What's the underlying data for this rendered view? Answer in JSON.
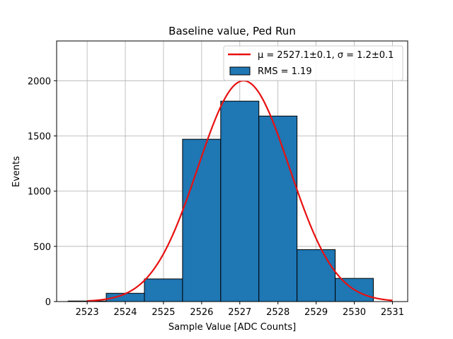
{
  "chart_data": {
    "type": "bar",
    "title": "Baseline value, Ped Run",
    "xlabel": "Sample Value [ADC Counts]",
    "ylabel": "Events",
    "xlim": [
      2522.2,
      2531.4
    ],
    "ylim": [
      0,
      2360
    ],
    "x_ticks": [
      2523,
      2524,
      2525,
      2526,
      2527,
      2528,
      2529,
      2530,
      2531
    ],
    "y_ticks": [
      0,
      500,
      1000,
      1500,
      2000
    ],
    "grid": true,
    "legend_position": "top-right",
    "bins": [
      {
        "x0": 2522.5,
        "x1": 2523.5,
        "value": 5
      },
      {
        "x0": 2523.5,
        "x1": 2524.5,
        "value": 75
      },
      {
        "x0": 2524.5,
        "x1": 2525.5,
        "value": 205
      },
      {
        "x0": 2525.5,
        "x1": 2526.5,
        "value": 1470
      },
      {
        "x0": 2526.5,
        "x1": 2527.5,
        "value": 1815
      },
      {
        "x0": 2527.5,
        "x1": 2528.5,
        "value": 1680
      },
      {
        "x0": 2528.5,
        "x1": 2529.5,
        "value": 470
      },
      {
        "x0": 2529.5,
        "x1": 2530.5,
        "value": 210
      }
    ],
    "fit": {
      "mu": 2527.1,
      "sigma": 1.2,
      "amplitude": 2000,
      "x_range": [
        2523,
        2531
      ]
    },
    "legend": {
      "fit_label": "μ = 2527.1±0.1, σ = 1.2±0.1",
      "hist_label": "RMS = 1.19"
    },
    "colors": {
      "bar_fill": "#1f77b4",
      "bar_edge": "#000000",
      "fit_line": "#e81010",
      "grid": "#b0b0b0"
    }
  }
}
